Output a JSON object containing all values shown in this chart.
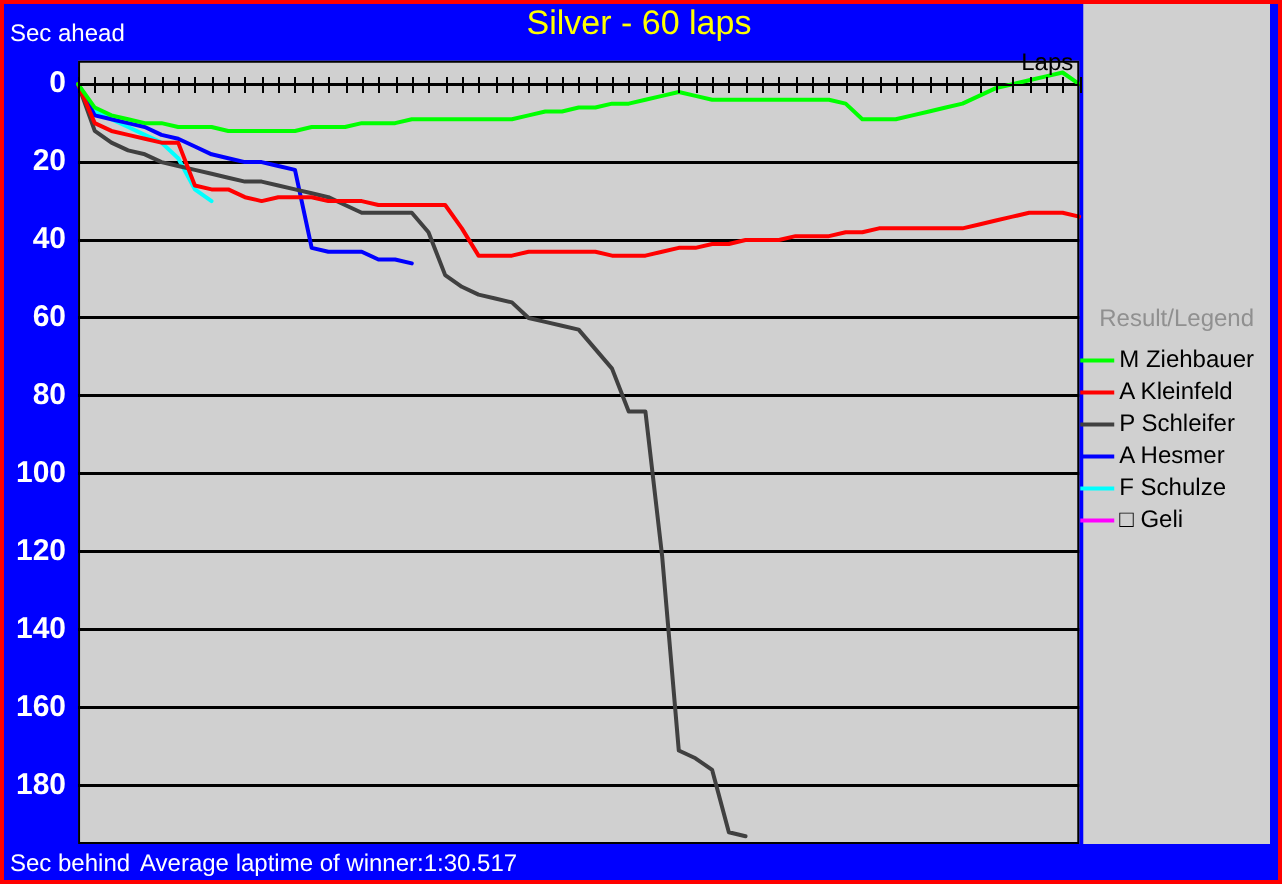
{
  "chart_data": {
    "type": "line",
    "title": "Silver - 60 laps",
    "xlabel": "Laps",
    "legend_title": "Result/Legend",
    "annotations": [
      "Sec ahead",
      "Sec behind",
      "Average laptime of winner:1:30.517"
    ],
    "categories": [
      null,
      null,
      null,
      null,
      null,
      null,
      null,
      null,
      null,
      null,
      null,
      null,
      null,
      null,
      null,
      null,
      null,
      null,
      null,
      null,
      null,
      null,
      null,
      null,
      null,
      null,
      null,
      null,
      null,
      null,
      null,
      null,
      null,
      null,
      null,
      null,
      null,
      null,
      null,
      null,
      null,
      null,
      null,
      null,
      null,
      null,
      null,
      null,
      null,
      null,
      null,
      null,
      null,
      null,
      null,
      null,
      null,
      null,
      null,
      null,
      null
    ],
    "ylim": [
      195,
      -6
    ],
    "yticks": [
      0,
      20,
      40,
      60,
      80,
      100,
      120,
      140,
      160,
      180
    ],
    "grid": "y",
    "legend": "right",
    "tick_labels": "y",
    "marker": "none",
    "line_style": "solid",
    "series": [
      {
        "name": "M Ziehbauer",
        "color": "#00ff00",
        "values": [
          0,
          6,
          8,
          9,
          10,
          10,
          11,
          11,
          11,
          12,
          12,
          12,
          12,
          12,
          11,
          11,
          11,
          10,
          10,
          10,
          9,
          9,
          9,
          9,
          9,
          9,
          9,
          8,
          7,
          7,
          6,
          6,
          5,
          5,
          4,
          3,
          2,
          3,
          4,
          4,
          4,
          4,
          4,
          4,
          4,
          4,
          5,
          9,
          9,
          9,
          8,
          7,
          6,
          5,
          3,
          1,
          0,
          -1,
          -2,
          -3,
          0
        ]
      },
      {
        "name": "A Kleinfeld",
        "color": "#ff0000",
        "values": [
          0,
          10,
          12,
          13,
          14,
          15,
          15,
          26,
          27,
          27,
          29,
          30,
          29,
          29,
          29,
          30,
          30,
          30,
          31,
          31,
          31,
          31,
          31,
          37,
          44,
          44,
          44,
          43,
          43,
          43,
          43,
          43,
          44,
          44,
          44,
          43,
          42,
          42,
          41,
          41,
          40,
          40,
          40,
          39,
          39,
          39,
          38,
          38,
          37,
          37,
          37,
          37,
          37,
          37,
          36,
          35,
          34,
          33,
          33,
          33,
          34
        ]
      },
      {
        "name": "P Schleifer",
        "color": "#404040",
        "values": [
          0,
          12,
          15,
          17,
          18,
          20,
          21,
          22,
          23,
          24,
          25,
          25,
          26,
          27,
          28,
          29,
          31,
          33,
          33,
          33,
          33,
          38,
          49,
          52,
          54,
          55,
          56,
          60,
          61,
          62,
          63,
          68,
          73,
          84,
          84,
          121,
          171,
          173,
          176,
          192,
          193,
          null,
          null,
          null,
          null,
          null,
          null,
          null,
          null,
          null,
          null,
          null,
          null,
          null,
          null,
          null,
          null,
          null,
          null,
          null,
          null
        ]
      },
      {
        "name": "A Hesmer",
        "color": "#0000ff",
        "values": [
          0,
          8,
          9,
          10,
          11,
          13,
          14,
          16,
          18,
          19,
          20,
          20,
          21,
          22,
          42,
          43,
          43,
          43,
          45,
          45,
          46,
          null,
          null,
          null,
          null,
          null,
          null,
          null,
          null,
          null,
          null,
          null,
          null,
          null,
          null,
          null,
          null,
          null,
          null,
          null,
          null,
          null,
          null,
          null,
          null,
          null,
          null,
          null,
          null,
          null,
          null,
          null,
          null,
          null,
          null,
          null,
          null,
          null,
          null,
          null,
          null
        ]
      },
      {
        "name": "F Schulze",
        "color": "#00ffff",
        "values": [
          0,
          7,
          9,
          11,
          13,
          15,
          19,
          27,
          30,
          null,
          null,
          null,
          null,
          null,
          null,
          null,
          null,
          null,
          null,
          null,
          null,
          null,
          null,
          null,
          null,
          null,
          null,
          null,
          null,
          null,
          null,
          null,
          null,
          null,
          null,
          null,
          null,
          null,
          null,
          null,
          null,
          null,
          null,
          null,
          null,
          null,
          null,
          null,
          null,
          null,
          null,
          null,
          null,
          null,
          null,
          null,
          null,
          null,
          null,
          null,
          null
        ]
      },
      {
        "name": "□ Geli",
        "color": "#ff00ff",
        "values": [
          null,
          null,
          null,
          null,
          null,
          null,
          null,
          null,
          null,
          null,
          null,
          null,
          null,
          null,
          null,
          null,
          null,
          null,
          null,
          null,
          null,
          null,
          null,
          null,
          null,
          null,
          null,
          null,
          null,
          null,
          null,
          null,
          null,
          null,
          null,
          null,
          null,
          null,
          null,
          null,
          null,
          null,
          null,
          null,
          null,
          null,
          null,
          null,
          null,
          null,
          null,
          null,
          null,
          null,
          null,
          null,
          null,
          null,
          null,
          null,
          null
        ]
      }
    ]
  }
}
